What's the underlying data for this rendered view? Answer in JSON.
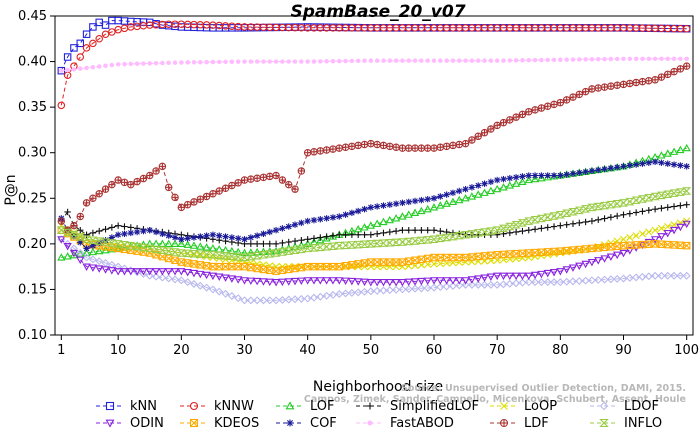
{
  "chart_data": {
    "type": "line",
    "title": "SpamBase_20_v07",
    "xlabel": "Neighborhood size",
    "ylabel": "P@n",
    "xlim": [
      0,
      101
    ],
    "ylim": [
      0.1,
      0.45
    ],
    "xticks": [
      1,
      10,
      20,
      30,
      40,
      50,
      60,
      70,
      80,
      90,
      100
    ],
    "yticks": [
      "0.10",
      "0.15",
      "0.20",
      "0.25",
      "0.30",
      "0.35",
      "0.40",
      "0.45"
    ],
    "grid": false,
    "legend_position": "bottom",
    "watermark": [
      "Source: Unsupervised Outlier Detection, DAMI, 2015.",
      "Campos, Zimek, Sander, Campello, Micenkova, Schubert, Assent, Houle"
    ],
    "series": [
      {
        "name": "kNN",
        "color": "#2222dd",
        "marker": "square",
        "dash": "4,3",
        "points": [
          [
            1,
            0.39
          ],
          [
            2,
            0.405
          ],
          [
            3,
            0.415
          ],
          [
            4,
            0.42
          ],
          [
            5,
            0.43
          ],
          [
            6,
            0.438
          ],
          [
            7,
            0.443
          ],
          [
            8,
            0.44
          ],
          [
            9,
            0.445
          ],
          [
            10,
            0.445
          ],
          [
            12,
            0.444
          ],
          [
            15,
            0.443
          ],
          [
            17,
            0.44
          ],
          [
            20,
            0.438
          ],
          [
            25,
            0.437
          ],
          [
            30,
            0.437
          ],
          [
            40,
            0.438
          ],
          [
            50,
            0.437
          ],
          [
            60,
            0.437
          ],
          [
            70,
            0.437
          ],
          [
            80,
            0.437
          ],
          [
            90,
            0.437
          ],
          [
            100,
            0.436
          ]
        ]
      },
      {
        "name": "kNNW",
        "color": "#e02020",
        "marker": "circle",
        "dash": "4,3",
        "points": [
          [
            1,
            0.352
          ],
          [
            2,
            0.385
          ],
          [
            3,
            0.395
          ],
          [
            4,
            0.405
          ],
          [
            5,
            0.415
          ],
          [
            6,
            0.42
          ],
          [
            7,
            0.425
          ],
          [
            8,
            0.43
          ],
          [
            10,
            0.435
          ],
          [
            12,
            0.438
          ],
          [
            15,
            0.44
          ],
          [
            18,
            0.441
          ],
          [
            20,
            0.441
          ],
          [
            25,
            0.44
          ],
          [
            30,
            0.438
          ],
          [
            40,
            0.437
          ],
          [
            50,
            0.437
          ],
          [
            60,
            0.437
          ],
          [
            70,
            0.437
          ],
          [
            80,
            0.437
          ],
          [
            90,
            0.437
          ],
          [
            100,
            0.436
          ]
        ]
      },
      {
        "name": "LOF",
        "color": "#22cc22",
        "marker": "triangle",
        "dash": "4,3",
        "points": [
          [
            1,
            0.185
          ],
          [
            5,
            0.19
          ],
          [
            10,
            0.195
          ],
          [
            15,
            0.2
          ],
          [
            20,
            0.2
          ],
          [
            25,
            0.195
          ],
          [
            30,
            0.19
          ],
          [
            35,
            0.192
          ],
          [
            40,
            0.2
          ],
          [
            45,
            0.21
          ],
          [
            50,
            0.22
          ],
          [
            55,
            0.23
          ],
          [
            60,
            0.24
          ],
          [
            65,
            0.25
          ],
          [
            70,
            0.26
          ],
          [
            75,
            0.27
          ],
          [
            80,
            0.275
          ],
          [
            85,
            0.28
          ],
          [
            90,
            0.285
          ],
          [
            95,
            0.295
          ],
          [
            100,
            0.305
          ]
        ]
      },
      {
        "name": "SimplifiedLOF",
        "color": "#111111",
        "marker": "plus",
        "dash": "4,3",
        "points": [
          [
            1,
            0.225
          ],
          [
            2,
            0.235
          ],
          [
            3,
            0.22
          ],
          [
            5,
            0.21
          ],
          [
            10,
            0.22
          ],
          [
            15,
            0.215
          ],
          [
            20,
            0.21
          ],
          [
            25,
            0.205
          ],
          [
            30,
            0.2
          ],
          [
            35,
            0.2
          ],
          [
            40,
            0.205
          ],
          [
            45,
            0.21
          ],
          [
            50,
            0.21
          ],
          [
            55,
            0.215
          ],
          [
            60,
            0.215
          ],
          [
            65,
            0.21
          ],
          [
            70,
            0.21
          ],
          [
            75,
            0.215
          ],
          [
            80,
            0.22
          ],
          [
            85,
            0.225
          ],
          [
            90,
            0.232
          ],
          [
            95,
            0.238
          ],
          [
            100,
            0.243
          ]
        ]
      },
      {
        "name": "LoOP",
        "color": "#dddd00",
        "marker": "x",
        "dash": "4,3",
        "points": [
          [
            1,
            0.22
          ],
          [
            5,
            0.205
          ],
          [
            10,
            0.2
          ],
          [
            15,
            0.195
          ],
          [
            20,
            0.19
          ],
          [
            25,
            0.185
          ],
          [
            30,
            0.18
          ],
          [
            35,
            0.175
          ],
          [
            40,
            0.175
          ],
          [
            45,
            0.175
          ],
          [
            50,
            0.175
          ],
          [
            55,
            0.175
          ],
          [
            60,
            0.178
          ],
          [
            65,
            0.18
          ],
          [
            70,
            0.182
          ],
          [
            75,
            0.185
          ],
          [
            80,
            0.19
          ],
          [
            85,
            0.195
          ],
          [
            90,
            0.205
          ],
          [
            95,
            0.215
          ],
          [
            100,
            0.225
          ]
        ]
      },
      {
        "name": "LDOF",
        "color": "#b8b8ee",
        "marker": "diamond",
        "dash": "4,3",
        "points": [
          [
            1,
            0.205
          ],
          [
            5,
            0.185
          ],
          [
            10,
            0.175
          ],
          [
            15,
            0.165
          ],
          [
            20,
            0.16
          ],
          [
            25,
            0.15
          ],
          [
            30,
            0.138
          ],
          [
            35,
            0.138
          ],
          [
            40,
            0.14
          ],
          [
            45,
            0.145
          ],
          [
            50,
            0.148
          ],
          [
            55,
            0.15
          ],
          [
            60,
            0.152
          ],
          [
            65,
            0.155
          ],
          [
            70,
            0.155
          ],
          [
            75,
            0.158
          ],
          [
            80,
            0.158
          ],
          [
            85,
            0.16
          ],
          [
            90,
            0.162
          ],
          [
            95,
            0.165
          ],
          [
            100,
            0.165
          ]
        ]
      },
      {
        "name": "ODIN",
        "color": "#8822dd",
        "marker": "triangle-down",
        "dash": "4,3",
        "points": [
          [
            1,
            0.205
          ],
          [
            5,
            0.175
          ],
          [
            10,
            0.17
          ],
          [
            15,
            0.17
          ],
          [
            20,
            0.17
          ],
          [
            25,
            0.165
          ],
          [
            30,
            0.16
          ],
          [
            35,
            0.158
          ],
          [
            40,
            0.16
          ],
          [
            45,
            0.16
          ],
          [
            50,
            0.158
          ],
          [
            55,
            0.158
          ],
          [
            60,
            0.16
          ],
          [
            65,
            0.16
          ],
          [
            70,
            0.165
          ],
          [
            75,
            0.165
          ],
          [
            80,
            0.17
          ],
          [
            85,
            0.18
          ],
          [
            90,
            0.19
          ],
          [
            95,
            0.205
          ],
          [
            100,
            0.222
          ]
        ]
      },
      {
        "name": "KDEOS",
        "color": "#ffaa00",
        "marker": "square-x",
        "dash": "4,3",
        "points": [
          [
            1,
            0.215
          ],
          [
            5,
            0.2
          ],
          [
            10,
            0.195
          ],
          [
            15,
            0.19
          ],
          [
            20,
            0.18
          ],
          [
            25,
            0.175
          ],
          [
            30,
            0.175
          ],
          [
            35,
            0.17
          ],
          [
            40,
            0.175
          ],
          [
            45,
            0.175
          ],
          [
            50,
            0.18
          ],
          [
            55,
            0.18
          ],
          [
            60,
            0.185
          ],
          [
            65,
            0.185
          ],
          [
            70,
            0.188
          ],
          [
            75,
            0.19
          ],
          [
            80,
            0.192
          ],
          [
            85,
            0.195
          ],
          [
            90,
            0.198
          ],
          [
            95,
            0.2
          ],
          [
            100,
            0.198
          ]
        ]
      },
      {
        "name": "COF",
        "color": "#1a1a99",
        "marker": "star",
        "dash": "4,3",
        "points": [
          [
            1,
            0.228
          ],
          [
            2,
            0.215
          ],
          [
            5,
            0.195
          ],
          [
            10,
            0.21
          ],
          [
            15,
            0.215
          ],
          [
            20,
            0.205
          ],
          [
            25,
            0.21
          ],
          [
            30,
            0.205
          ],
          [
            35,
            0.215
          ],
          [
            40,
            0.225
          ],
          [
            45,
            0.23
          ],
          [
            50,
            0.24
          ],
          [
            55,
            0.245
          ],
          [
            60,
            0.25
          ],
          [
            65,
            0.26
          ],
          [
            70,
            0.27
          ],
          [
            75,
            0.275
          ],
          [
            80,
            0.275
          ],
          [
            85,
            0.28
          ],
          [
            90,
            0.285
          ],
          [
            95,
            0.29
          ],
          [
            100,
            0.285
          ]
        ]
      },
      {
        "name": "FastABOD",
        "color": "#ffbbff",
        "marker": "dot",
        "dash": "4,3",
        "points": [
          [
            1,
            0.39
          ],
          [
            5,
            0.393
          ],
          [
            10,
            0.397
          ],
          [
            15,
            0.398
          ],
          [
            20,
            0.399
          ],
          [
            30,
            0.4
          ],
          [
            40,
            0.4
          ],
          [
            50,
            0.401
          ],
          [
            60,
            0.401
          ],
          [
            70,
            0.401
          ],
          [
            80,
            0.402
          ],
          [
            90,
            0.403
          ],
          [
            100,
            0.403
          ]
        ]
      },
      {
        "name": "LDF",
        "color": "#aa3333",
        "marker": "circle-plus",
        "dash": "4,3",
        "points": [
          [
            1,
            0.225
          ],
          [
            2,
            0.215
          ],
          [
            3,
            0.22
          ],
          [
            4,
            0.23
          ],
          [
            5,
            0.245
          ],
          [
            7,
            0.255
          ],
          [
            9,
            0.265
          ],
          [
            10,
            0.27
          ],
          [
            12,
            0.265
          ],
          [
            15,
            0.275
          ],
          [
            17,
            0.285
          ],
          [
            18,
            0.262
          ],
          [
            20,
            0.24
          ],
          [
            25,
            0.255
          ],
          [
            30,
            0.27
          ],
          [
            35,
            0.275
          ],
          [
            38,
            0.26
          ],
          [
            40,
            0.3
          ],
          [
            45,
            0.305
          ],
          [
            50,
            0.31
          ],
          [
            55,
            0.305
          ],
          [
            60,
            0.305
          ],
          [
            65,
            0.31
          ],
          [
            70,
            0.33
          ],
          [
            75,
            0.345
          ],
          [
            80,
            0.355
          ],
          [
            85,
            0.37
          ],
          [
            90,
            0.375
          ],
          [
            95,
            0.38
          ],
          [
            100,
            0.395
          ]
        ]
      },
      {
        "name": "INFLO",
        "color": "#99cc44",
        "marker": "hourglass",
        "dash": "4,3",
        "points": [
          [
            1,
            0.215
          ],
          [
            5,
            0.205
          ],
          [
            10,
            0.2
          ],
          [
            15,
            0.195
          ],
          [
            20,
            0.19
          ],
          [
            25,
            0.188
          ],
          [
            30,
            0.185
          ],
          [
            35,
            0.19
          ],
          [
            40,
            0.195
          ],
          [
            45,
            0.198
          ],
          [
            50,
            0.2
          ],
          [
            55,
            0.202
          ],
          [
            60,
            0.205
          ],
          [
            65,
            0.21
          ],
          [
            70,
            0.215
          ],
          [
            75,
            0.225
          ],
          [
            80,
            0.232
          ],
          [
            85,
            0.24
          ],
          [
            90,
            0.245
          ],
          [
            95,
            0.252
          ],
          [
            100,
            0.258
          ]
        ]
      }
    ],
    "legend_order": [
      [
        "kNN",
        "kNNW",
        "LOF",
        "SimplifiedLOF",
        "LoOP",
        "LDOF"
      ],
      [
        "ODIN",
        "KDEOS",
        "COF",
        "FastABOD",
        "LDF",
        "INFLO"
      ]
    ]
  }
}
